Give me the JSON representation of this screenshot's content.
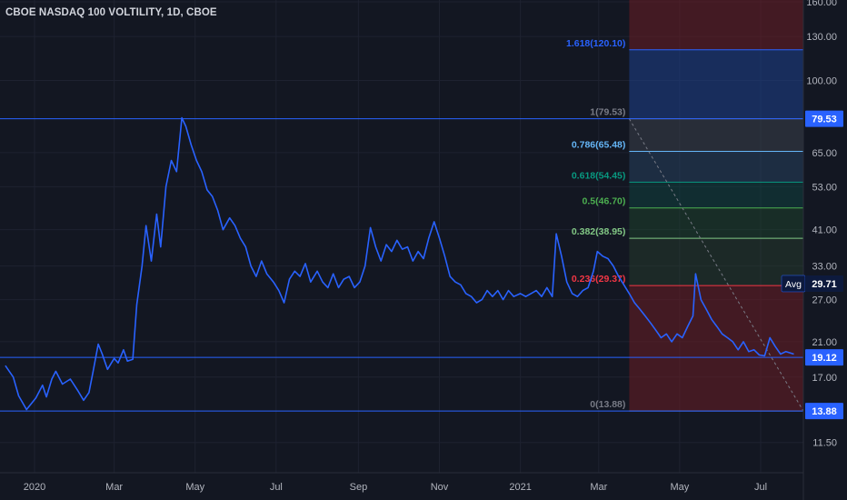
{
  "header": {
    "title": "CBOE NASDAQ 100 VOLTILITY, 1D, CBOE"
  },
  "colors": {
    "background": "#131722",
    "line": "#2962ff",
    "grid": "#1e2230",
    "axis_text": "#b2b5be",
    "price_tag": "#2962ff",
    "avg_tag": "#0d1a3d"
  },
  "chart_data": {
    "type": "line",
    "scale": "log",
    "ylim": [
      9.6,
      161.7
    ],
    "grid": true,
    "y_ticks": [
      "160.00",
      "130.00",
      "100.00",
      "79.53",
      "65.00",
      "53.00",
      "41.00",
      "33.00",
      "27.00",
      "21.00",
      "17.00",
      "13.88",
      "11.50"
    ],
    "x_ticks": [
      "2020",
      "Mar",
      "May",
      "Jul",
      "Sep",
      "Nov",
      "2021",
      "Mar",
      "May",
      "Jul"
    ],
    "x_tick_dates": [
      "2020-01-01",
      "2020-03-01",
      "2020-05-01",
      "2020-07-01",
      "2020-09-01",
      "2020-11-01",
      "2021-01-01",
      "2021-03-01",
      "2021-05-01",
      "2021-07-01"
    ],
    "fib_levels": [
      {
        "ratio": "1.618",
        "price": 120.1,
        "label": "1.618(120.10)",
        "color": "#2962ff"
      },
      {
        "ratio": "1",
        "price": 79.53,
        "label": "1(79.53)",
        "color": "#787b86"
      },
      {
        "ratio": "0.786",
        "price": 65.48,
        "label": "0.786(65.48)",
        "color": "#64b5f6"
      },
      {
        "ratio": "0.618",
        "price": 54.45,
        "label": "0.618(54.45)",
        "color": "#089981"
      },
      {
        "ratio": "0.5",
        "price": 46.7,
        "label": "0.5(46.70)",
        "color": "#4caf50"
      },
      {
        "ratio": "0.382",
        "price": 38.95,
        "label": "0.382(38.95)",
        "color": "#81c784"
      },
      {
        "ratio": "0.236",
        "price": 29.37,
        "label": "0.236(29.37)",
        "color": "#f23645"
      },
      {
        "ratio": "0",
        "price": 13.88,
        "label": "0(13.88)",
        "color": "#787b86"
      }
    ],
    "horizontal_lines": [
      79.53,
      19.12,
      13.88
    ],
    "price_tags": [
      {
        "value": 79.53,
        "label": "79.53"
      },
      {
        "value": 19.12,
        "label": "19.12"
      },
      {
        "value": 13.88,
        "label": "13.88"
      }
    ],
    "avg_tag": {
      "prefix": "Avg",
      "value": 29.71,
      "label": "29.71"
    },
    "series": [
      {
        "points": [
          [
            "2019-12-10",
            18.2
          ],
          [
            "2019-12-16",
            17.0
          ],
          [
            "2019-12-20",
            15.2
          ],
          [
            "2019-12-26",
            14.0
          ],
          [
            "2020-01-02",
            15.0
          ],
          [
            "2020-01-07",
            16.2
          ],
          [
            "2020-01-10",
            15.1
          ],
          [
            "2020-01-14",
            16.8
          ],
          [
            "2020-01-17",
            17.6
          ],
          [
            "2020-01-22",
            16.3
          ],
          [
            "2020-01-28",
            16.8
          ],
          [
            "2020-02-03",
            15.6
          ],
          [
            "2020-02-07",
            14.8
          ],
          [
            "2020-02-11",
            15.5
          ],
          [
            "2020-02-14",
            17.5
          ],
          [
            "2020-02-18",
            20.7
          ],
          [
            "2020-02-21",
            19.5
          ],
          [
            "2020-02-25",
            17.8
          ],
          [
            "2020-03-01",
            19.0
          ],
          [
            "2020-03-04",
            18.5
          ],
          [
            "2020-03-08",
            20.0
          ],
          [
            "2020-03-11",
            18.7
          ],
          [
            "2020-03-15",
            18.9
          ],
          [
            "2020-03-18",
            26.2
          ],
          [
            "2020-03-22",
            33.0
          ],
          [
            "2020-03-25",
            42.0
          ],
          [
            "2020-03-29",
            34.0
          ],
          [
            "2020-04-02",
            45.0
          ],
          [
            "2020-04-05",
            37.0
          ],
          [
            "2020-04-09",
            53.0
          ],
          [
            "2020-04-13",
            62.0
          ],
          [
            "2020-04-17",
            58.0
          ],
          [
            "2020-04-21",
            80.0
          ],
          [
            "2020-04-24",
            76.0
          ],
          [
            "2020-04-28",
            68.0
          ],
          [
            "2020-05-02",
            62.0
          ],
          [
            "2020-05-06",
            58.0
          ],
          [
            "2020-05-10",
            52.0
          ],
          [
            "2020-05-14",
            50.0
          ],
          [
            "2020-05-18",
            46.0
          ],
          [
            "2020-05-22",
            41.0
          ],
          [
            "2020-05-27",
            44.0
          ],
          [
            "2020-05-31",
            42.0
          ],
          [
            "2020-06-04",
            39.0
          ],
          [
            "2020-06-08",
            37.0
          ],
          [
            "2020-06-12",
            33.0
          ],
          [
            "2020-06-16",
            31.0
          ],
          [
            "2020-06-20",
            34.0
          ],
          [
            "2020-06-24",
            31.5
          ],
          [
            "2020-06-29",
            30.0
          ],
          [
            "2020-07-03",
            28.5
          ],
          [
            "2020-07-07",
            26.5
          ],
          [
            "2020-07-11",
            30.5
          ],
          [
            "2020-07-15",
            32.0
          ],
          [
            "2020-07-19",
            31.0
          ],
          [
            "2020-07-23",
            33.5
          ],
          [
            "2020-07-27",
            30.0
          ],
          [
            "2020-08-01",
            32.0
          ],
          [
            "2020-08-05",
            30.0
          ],
          [
            "2020-08-09",
            29.0
          ],
          [
            "2020-08-13",
            31.5
          ],
          [
            "2020-08-17",
            29.0
          ],
          [
            "2020-08-21",
            30.5
          ],
          [
            "2020-08-25",
            31.0
          ],
          [
            "2020-08-29",
            29.0
          ],
          [
            "2020-09-02",
            30.0
          ],
          [
            "2020-09-06",
            33.0
          ],
          [
            "2020-09-10",
            41.5
          ],
          [
            "2020-09-14",
            37.0
          ],
          [
            "2020-09-18",
            34.0
          ],
          [
            "2020-09-22",
            37.5
          ],
          [
            "2020-09-26",
            36.0
          ],
          [
            "2020-09-30",
            38.5
          ],
          [
            "2020-10-04",
            36.5
          ],
          [
            "2020-10-08",
            37.0
          ],
          [
            "2020-10-12",
            34.0
          ],
          [
            "2020-10-16",
            36.0
          ],
          [
            "2020-10-20",
            34.5
          ],
          [
            "2020-10-24",
            39.0
          ],
          [
            "2020-10-28",
            43.0
          ],
          [
            "2020-11-01",
            39.0
          ],
          [
            "2020-11-05",
            35.0
          ],
          [
            "2020-11-09",
            31.0
          ],
          [
            "2020-11-13",
            30.0
          ],
          [
            "2020-11-17",
            29.5
          ],
          [
            "2020-11-21",
            28.0
          ],
          [
            "2020-11-25",
            27.5
          ],
          [
            "2020-11-29",
            26.5
          ],
          [
            "2020-12-03",
            27.0
          ],
          [
            "2020-12-07",
            28.5
          ],
          [
            "2020-12-11",
            27.5
          ],
          [
            "2020-12-15",
            28.5
          ],
          [
            "2020-12-19",
            27.0
          ],
          [
            "2020-12-23",
            28.5
          ],
          [
            "2020-12-27",
            27.5
          ],
          [
            "2021-01-01",
            28.0
          ],
          [
            "2021-01-05",
            27.5
          ],
          [
            "2021-01-09",
            28.0
          ],
          [
            "2021-01-13",
            28.5
          ],
          [
            "2021-01-17",
            27.5
          ],
          [
            "2021-01-21",
            29.0
          ],
          [
            "2021-01-25",
            27.5
          ],
          [
            "2021-01-28",
            40.0
          ],
          [
            "2021-02-01",
            35.0
          ],
          [
            "2021-02-05",
            30.0
          ],
          [
            "2021-02-09",
            28.0
          ],
          [
            "2021-02-13",
            27.5
          ],
          [
            "2021-02-17",
            28.5
          ],
          [
            "2021-02-21",
            29.0
          ],
          [
            "2021-02-25",
            32.0
          ],
          [
            "2021-02-28",
            36.0
          ],
          [
            "2021-03-04",
            35.0
          ],
          [
            "2021-03-08",
            34.5
          ],
          [
            "2021-03-12",
            33.0
          ],
          [
            "2021-03-16",
            31.0
          ],
          [
            "2021-03-20",
            29.5
          ],
          [
            "2021-03-24",
            28.0
          ],
          [
            "2021-03-28",
            26.5
          ],
          [
            "2021-04-01",
            25.5
          ],
          [
            "2021-04-05",
            24.5
          ],
          [
            "2021-04-09",
            23.5
          ],
          [
            "2021-04-13",
            22.5
          ],
          [
            "2021-04-17",
            21.5
          ],
          [
            "2021-04-21",
            22.0
          ],
          [
            "2021-04-25",
            21.0
          ],
          [
            "2021-04-29",
            22.0
          ],
          [
            "2021-05-03",
            21.5
          ],
          [
            "2021-05-07",
            23.0
          ],
          [
            "2021-05-11",
            24.5
          ],
          [
            "2021-05-13",
            31.5
          ],
          [
            "2021-05-17",
            27.0
          ],
          [
            "2021-05-21",
            25.5
          ],
          [
            "2021-05-25",
            24.0
          ],
          [
            "2021-05-29",
            23.0
          ],
          [
            "2021-06-02",
            22.0
          ],
          [
            "2021-06-06",
            21.5
          ],
          [
            "2021-06-10",
            21.0
          ],
          [
            "2021-06-14",
            20.0
          ],
          [
            "2021-06-18",
            21.0
          ],
          [
            "2021-06-22",
            19.8
          ],
          [
            "2021-06-26",
            20.0
          ],
          [
            "2021-06-30",
            19.4
          ],
          [
            "2021-07-04",
            19.3
          ],
          [
            "2021-07-08",
            21.5
          ],
          [
            "2021-07-12",
            20.4
          ],
          [
            "2021-07-16",
            19.5
          ],
          [
            "2021-07-20",
            19.8
          ],
          [
            "2021-07-26",
            19.5
          ]
        ]
      }
    ]
  }
}
